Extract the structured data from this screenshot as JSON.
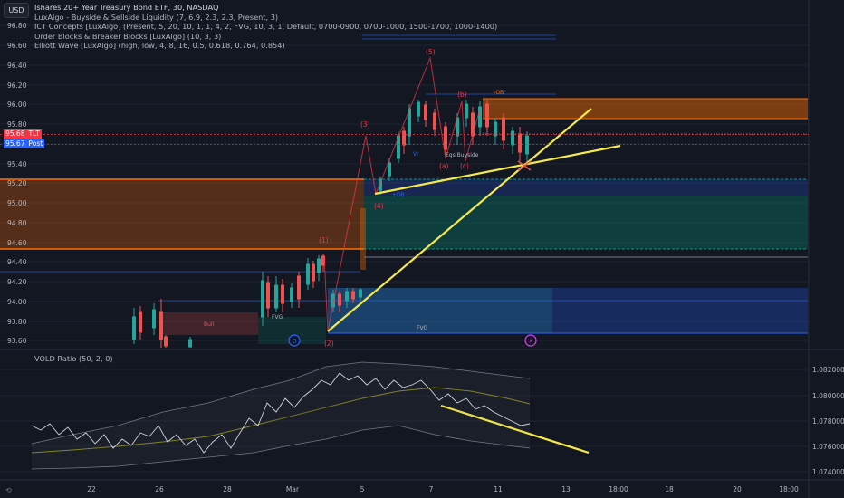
{
  "main_chart": {
    "currency_button": "USD",
    "title": "Ishares 20+ Year Treasury Bond ETF, 30, NASDAQ",
    "indicators": [
      "LuxAlgo - Buyside & Sellside Liquidity (7, 6.9, 2.3, 2.3, Present, 3)",
      "ICT Concepts [LuxAlgo] (Present, 5, 20, 10, 1, 1, 4, 2, FVG, 10, 3, 1, Default, 0700-0900, 0700-1000, 1500-1700, 1000-1400)",
      "Order Blocks & Breaker Blocks [LuxAlgo] (10, 3, 3)",
      "Elliott Wave [LuxAlgo] (high, low, 4, 8, 16, 0.5, 0.618, 0.764, 0.854)"
    ],
    "price_axis": [
      "96.80",
      "96.60",
      "96.40",
      "96.20",
      "96.00",
      "95.80",
      "95.60",
      "95.40",
      "95.20",
      "95.00",
      "94.80",
      "94.60",
      "94.40",
      "94.20",
      "94.00",
      "93.80",
      "93.60"
    ],
    "last_price": {
      "value": "95.68",
      "symbol": "TLT",
      "color": "#f23645"
    },
    "post_price": {
      "value": "95.67",
      "label": "Post",
      "color": "#2962ff"
    },
    "wave_labels": [
      "(1)",
      "(2)",
      "(3)",
      "(4)",
      "(5)",
      "(a)",
      "(b)",
      "(c)",
      "(a)",
      "(b)",
      "(c)"
    ],
    "zone_labels": [
      "-OB",
      "+OB",
      "FVG",
      "FVG",
      "Bull",
      "Eqs Buyside",
      "VI"
    ],
    "event_markers": [
      "D",
      "⚡"
    ]
  },
  "vold_panel": {
    "label": "VOLD Ratio (50, 2, 0)",
    "axis": [
      "1.082000",
      "1.080000",
      "1.078000",
      "1.076000",
      "1.074000"
    ]
  },
  "time_axis": [
    "22",
    "26",
    "28",
    "Mar",
    "5",
    "7",
    "11",
    "13",
    "18:00",
    "18",
    "20",
    "18:00"
  ],
  "colors": {
    "background": "#131722",
    "up": "#26a69a",
    "down": "#ef5350",
    "trendline": "#f5e94a",
    "ob_bear": "#ff6d00",
    "ob_bull": "#089981",
    "fvg_blue": "#2962ff",
    "wave": "#f23645"
  }
}
